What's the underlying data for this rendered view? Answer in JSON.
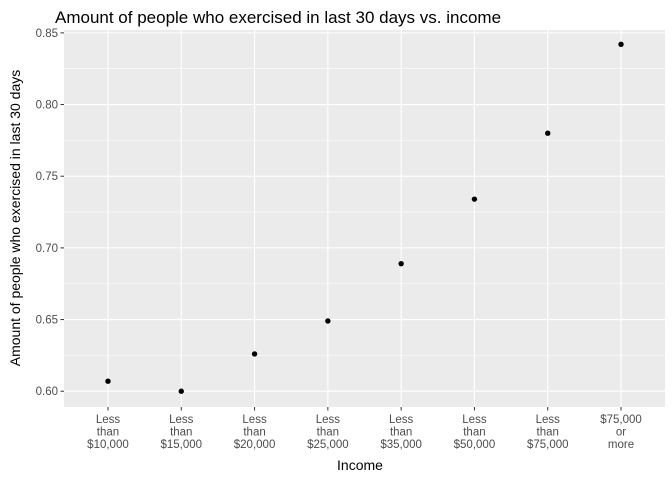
{
  "chart_data": {
    "type": "scatter",
    "title": "Amount of people who exercised in last 30 days vs. income",
    "xlabel": "Income",
    "ylabel": "Amount of people who exercised in last 30 days",
    "categories": [
      "Less than $10,000",
      "Less than $15,000",
      "Less than $20,000",
      "Less than $25,000",
      "Less than $35,000",
      "Less than $50,000",
      "Less than $75,000",
      "$75,000 or more"
    ],
    "category_lines": [
      [
        "Less",
        "than",
        "$10,000"
      ],
      [
        "Less",
        "than",
        "$15,000"
      ],
      [
        "Less",
        "than",
        "$20,000"
      ],
      [
        "Less",
        "than",
        "$25,000"
      ],
      [
        "Less",
        "than",
        "$35,000"
      ],
      [
        "Less",
        "than",
        "$50,000"
      ],
      [
        "Less",
        "than",
        "$75,000"
      ],
      [
        "$75,000",
        "or",
        "more"
      ]
    ],
    "values": [
      0.607,
      0.6,
      0.626,
      0.649,
      0.689,
      0.734,
      0.78,
      0.842
    ],
    "ylim": [
      0.589,
      0.852
    ],
    "yticks": [
      0.6,
      0.65,
      0.7,
      0.75,
      0.8,
      0.85
    ],
    "ytick_labels": [
      "0.60",
      "0.65",
      "0.70",
      "0.75",
      "0.80",
      "0.85"
    ],
    "grid": true,
    "colors": {
      "panel_background": "#ebebeb",
      "grid_major": "#ffffff",
      "point": "#000000",
      "tick_text": "#4d4d4d"
    }
  }
}
